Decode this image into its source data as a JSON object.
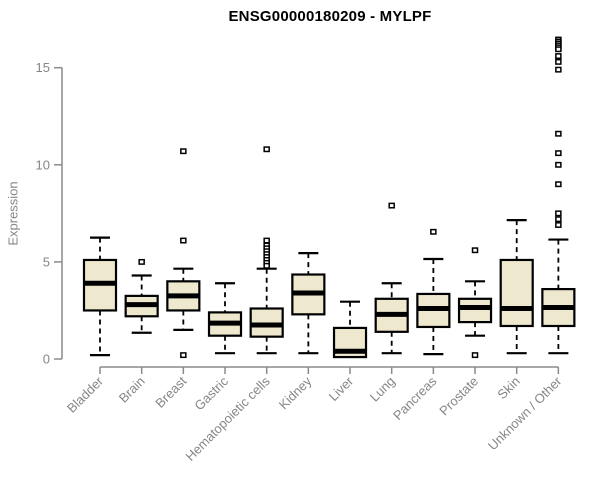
{
  "chart_data": {
    "type": "box",
    "title": "ENSG00000180209 - MYLPF",
    "xlabel": "",
    "ylabel": "Expression",
    "ylim": [
      0,
      16.6
    ],
    "yticks": [
      0,
      5,
      10,
      15
    ],
    "grid": false,
    "legend": "none",
    "categories": [
      "Bladder",
      "Brain",
      "Breast",
      "Gastric",
      "Hematopoietic cells",
      "Kidney",
      "Liver",
      "Lung",
      "Pancreas",
      "Prostate",
      "Skin",
      "Unknown / Other"
    ],
    "series": [
      {
        "label": "Bladder",
        "whisker_low": 0.2,
        "q1": 2.5,
        "median": 3.9,
        "q3": 5.1,
        "whisker_high": 6.25,
        "outliers": []
      },
      {
        "label": "Brain",
        "whisker_low": 1.35,
        "q1": 2.2,
        "median": 2.8,
        "q3": 3.25,
        "whisker_high": 4.3,
        "outliers": [
          5.0
        ]
      },
      {
        "label": "Breast",
        "whisker_low": 1.5,
        "q1": 2.5,
        "median": 3.25,
        "q3": 4.0,
        "whisker_high": 4.65,
        "outliers": [
          10.7,
          6.1,
          0.2
        ]
      },
      {
        "label": "Gastric",
        "whisker_low": 0.3,
        "q1": 1.2,
        "median": 1.85,
        "q3": 2.4,
        "whisker_high": 3.9,
        "outliers": []
      },
      {
        "label": "Hematopoietic cells",
        "whisker_low": 0.3,
        "q1": 1.15,
        "median": 1.75,
        "q3": 2.6,
        "whisker_high": 4.65,
        "outliers": [
          10.8,
          6.1,
          5.85,
          5.7,
          5.55,
          5.4,
          5.25,
          5.1,
          4.95,
          4.8
        ]
      },
      {
        "label": "Kidney",
        "whisker_low": 0.3,
        "q1": 2.3,
        "median": 3.4,
        "q3": 4.35,
        "whisker_high": 5.45,
        "outliers": []
      },
      {
        "label": "Liver",
        "whisker_low": 0.1,
        "q1": 0.1,
        "median": 0.4,
        "q3": 1.6,
        "whisker_high": 2.95,
        "outliers": []
      },
      {
        "label": "Lung",
        "whisker_low": 0.3,
        "q1": 1.4,
        "median": 2.3,
        "q3": 3.1,
        "whisker_high": 3.9,
        "outliers": [
          7.9
        ]
      },
      {
        "label": "Pancreas",
        "whisker_low": 0.25,
        "q1": 1.65,
        "median": 2.6,
        "q3": 3.35,
        "whisker_high": 5.15,
        "outliers": [
          6.55
        ]
      },
      {
        "label": "Prostate",
        "whisker_low": 1.2,
        "q1": 1.9,
        "median": 2.65,
        "q3": 3.1,
        "whisker_high": 4.0,
        "outliers": [
          5.6,
          0.2
        ]
      },
      {
        "label": "Skin",
        "whisker_low": 0.3,
        "q1": 1.7,
        "median": 2.6,
        "q3": 5.1,
        "whisker_high": 7.15,
        "outliers": []
      },
      {
        "label": "Unknown / Other",
        "whisker_low": 0.3,
        "q1": 1.7,
        "median": 2.65,
        "q3": 3.6,
        "whisker_high": 6.15,
        "outliers": [
          16.45,
          16.35,
          16.25,
          16.15,
          16.05,
          15.95,
          15.6,
          15.3,
          14.9,
          11.6,
          10.6,
          10.0,
          9.0,
          7.5,
          7.2,
          6.9
        ]
      }
    ],
    "colors": {
      "box_fill": "#EEE8CF",
      "box_border": "#000000",
      "median": "#000000",
      "whisker": "#000000",
      "outlier": "#000000",
      "axis": "#8A8A8A",
      "tick_label": "#868686",
      "title": "#000000",
      "background": "#FFFFFF"
    }
  }
}
